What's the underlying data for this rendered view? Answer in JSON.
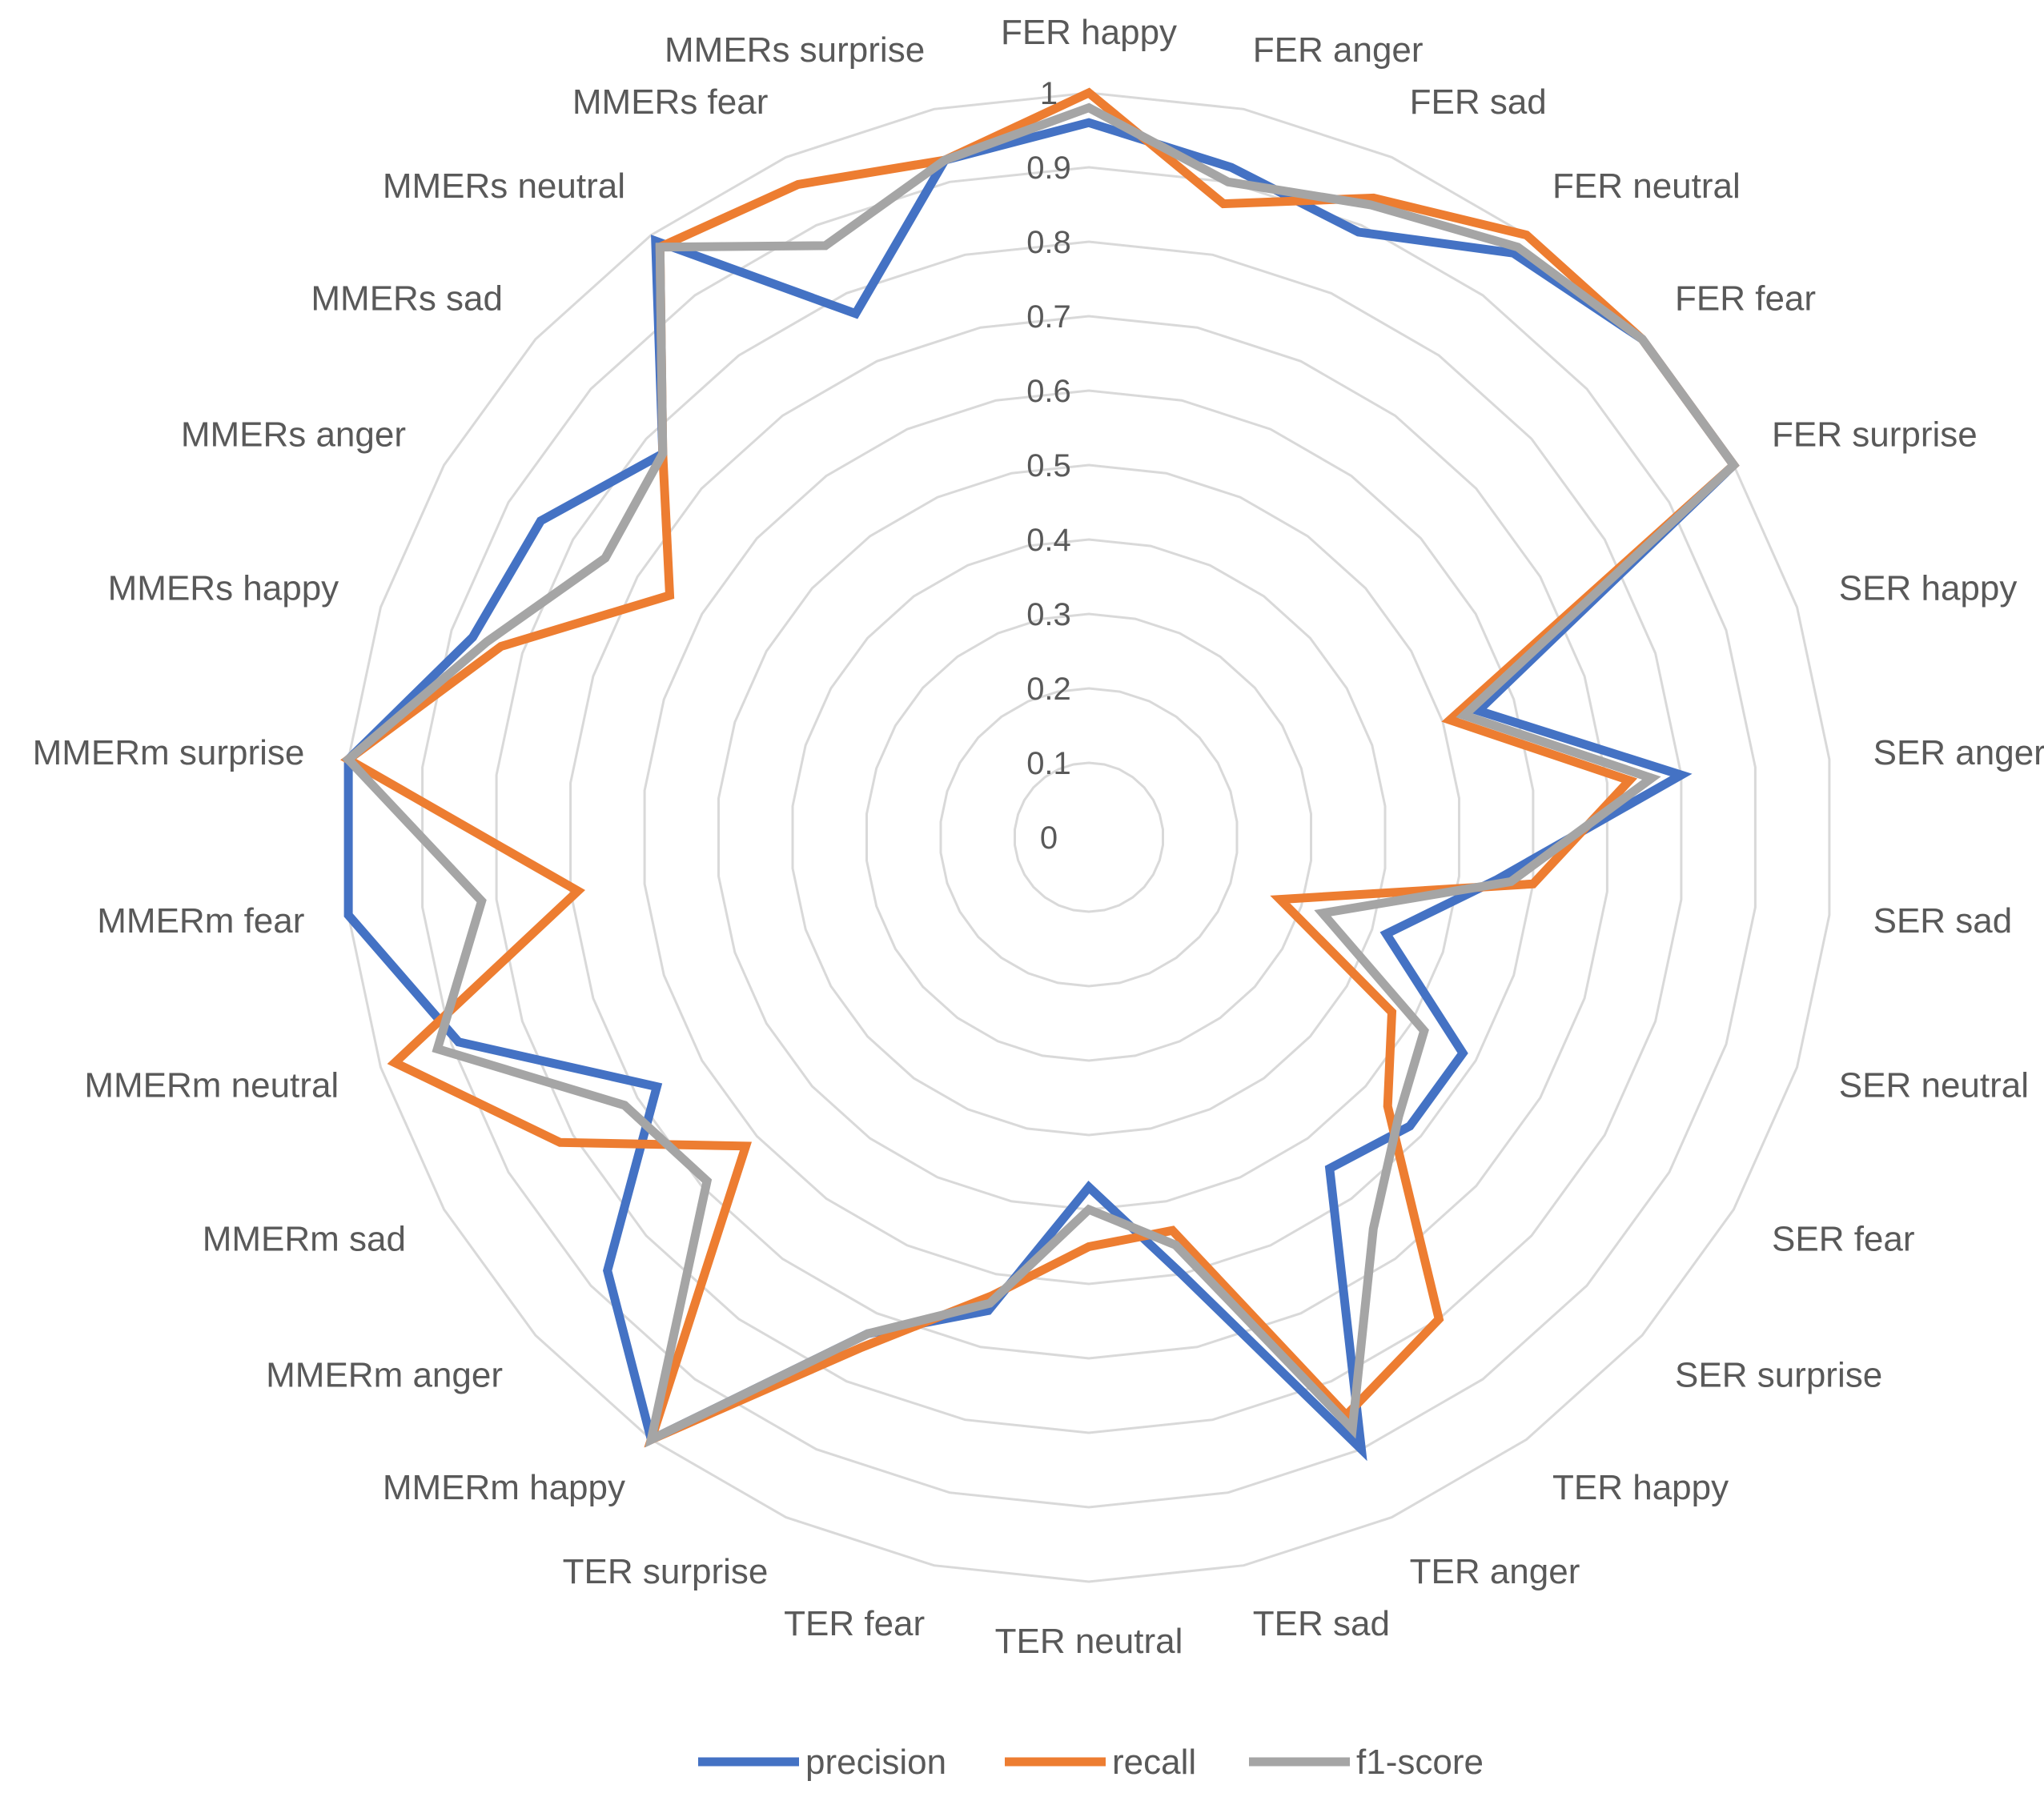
{
  "chart_data": {
    "type": "radar",
    "title": "",
    "categories": [
      "FER happy",
      "FER anger",
      "FER sad",
      "FER neutral",
      "FER fear",
      "FER surprise",
      "SER happy",
      "SER anger",
      "SER sad",
      "SER neutral",
      "SER fear",
      "SER surprise",
      "TER happy",
      "TER anger",
      "TER sad",
      "TER neutral",
      "TER fear",
      "TER surprise",
      "MMERm happy",
      "MMERm anger",
      "MMERm sad",
      "MMERm neutral",
      "MMERm fear",
      "MMERm surprise",
      "MMERs happy",
      "MMERs anger",
      "MMERs sad",
      "MMERs neutral",
      "MMERs fear",
      "MMERs surprise"
    ],
    "rlim": [
      0,
      1
    ],
    "ticks": [
      "0",
      "0.1",
      "0.2",
      "0.3",
      "0.4",
      "0.5",
      "0.6",
      "0.7",
      "0.8",
      "0.9",
      "1"
    ],
    "grid": true,
    "legend_position": "bottom",
    "series": [
      {
        "name": "precision",
        "color": "#4472C4",
        "values": [
          0.96,
          0.92,
          0.89,
          0.97,
          1.0,
          1.0,
          0.55,
          0.8,
          0.55,
          0.42,
          0.58,
          0.58,
          0.55,
          0.9,
          0.6,
          0.47,
          0.65,
          0.73,
          1.0,
          0.87,
          0.67,
          0.89,
          1.0,
          1.0,
          0.87,
          0.85,
          0.77,
          0.99,
          0.77,
          0.93
        ]
      },
      {
        "name": "recall",
        "color": "#ED7D31",
        "values": [
          1.0,
          0.87,
          0.94,
          1.0,
          1.0,
          1.0,
          0.51,
          0.73,
          0.6,
          0.27,
          0.47,
          0.54,
          0.8,
          0.85,
          0.54,
          0.55,
          0.63,
          0.75,
          1.0,
          0.62,
          0.82,
          0.98,
          0.69,
          1.0,
          0.83,
          0.65,
          0.77,
          0.98,
          0.96,
          0.93
        ]
      },
      {
        "name": "f1-score",
        "color": "#A5A5A5",
        "values": [
          0.98,
          0.9,
          0.93,
          0.98,
          1.0,
          1.0,
          0.53,
          0.76,
          0.57,
          0.33,
          0.52,
          0.56,
          0.65,
          0.87,
          0.56,
          0.5,
          0.64,
          0.73,
          1.0,
          0.69,
          0.72,
          0.92,
          0.82,
          1.0,
          0.85,
          0.75,
          0.77,
          0.98,
          0.87,
          0.93
        ]
      }
    ]
  }
}
